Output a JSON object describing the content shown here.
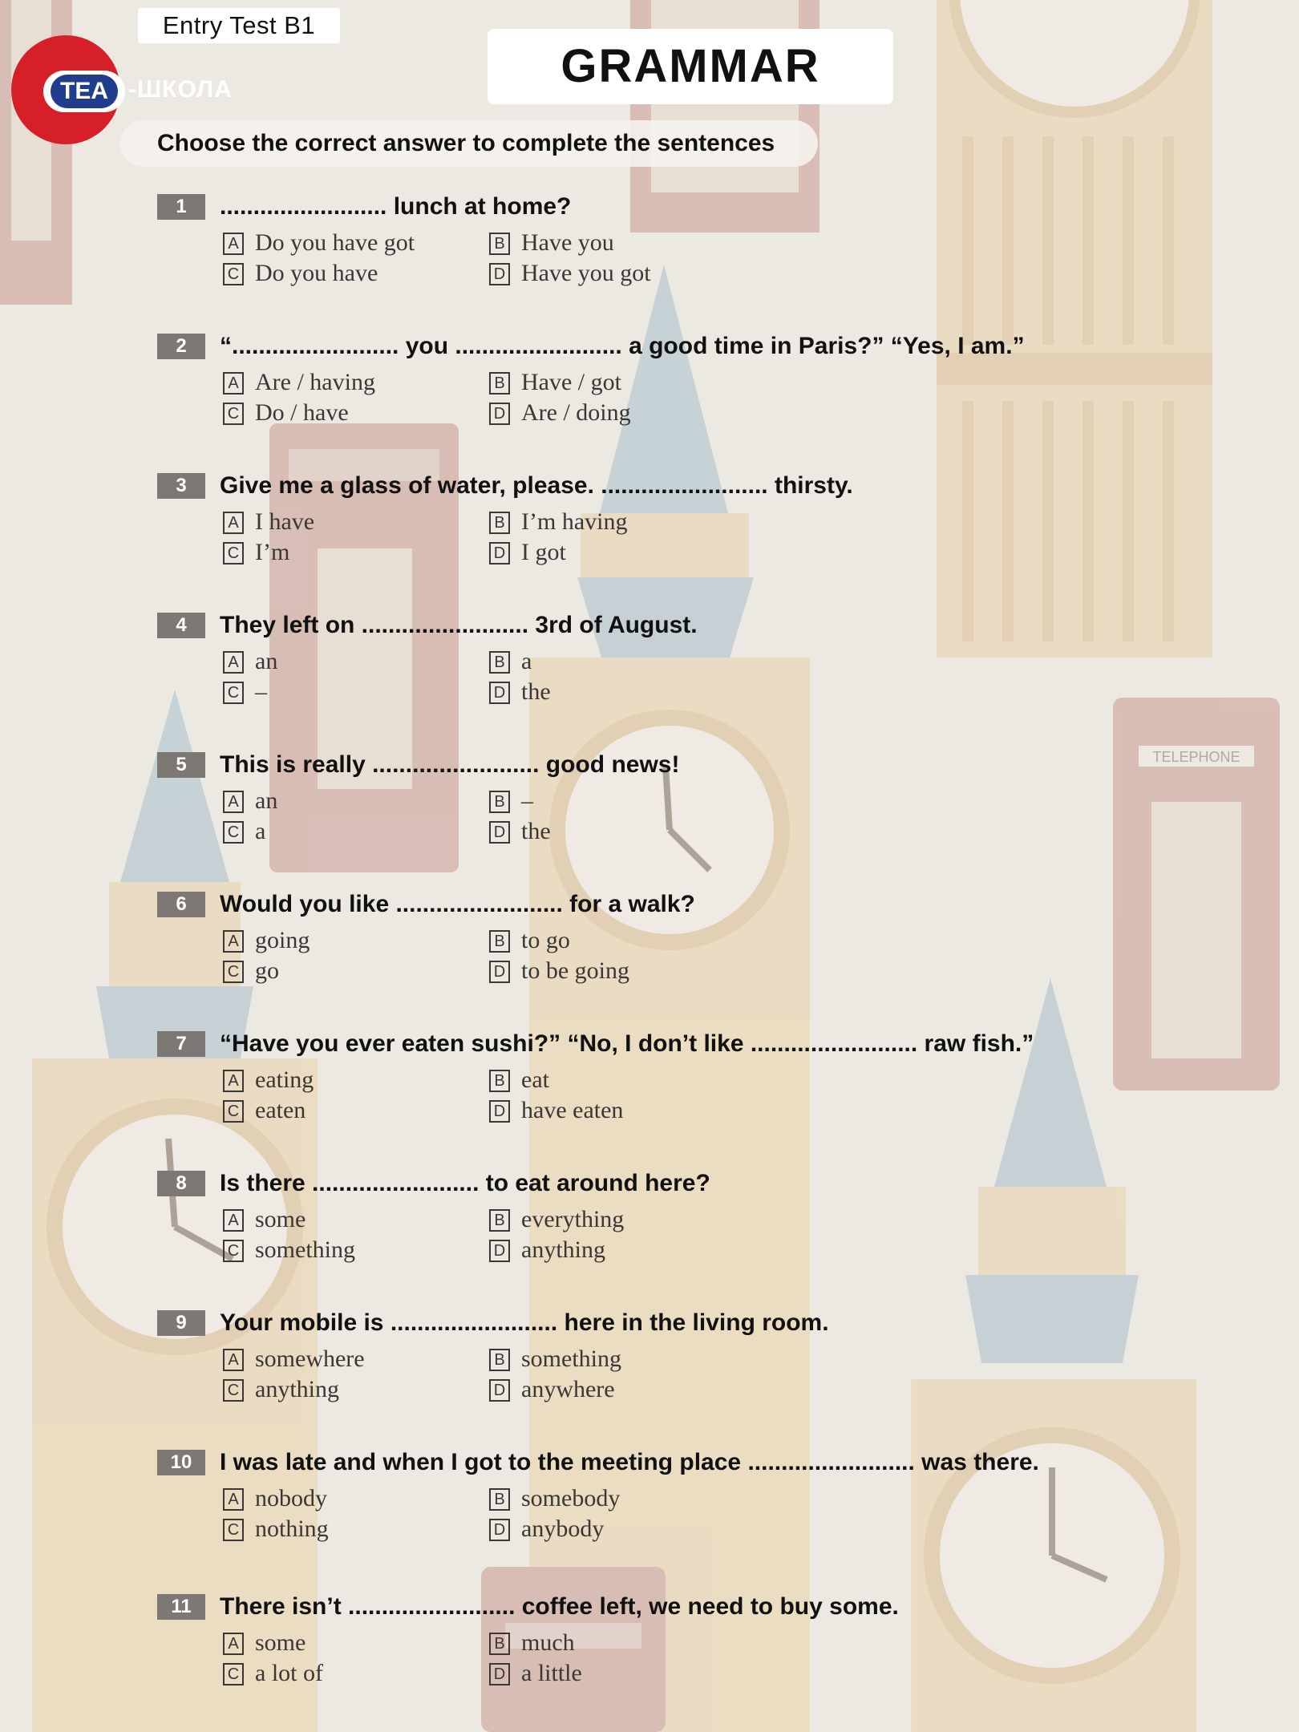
{
  "header": {
    "test_label": "Entry Test B1",
    "logo_tea": "TEA",
    "logo_school": "-ШКОЛА",
    "title": "GRAMMAR"
  },
  "instructions": "Choose the correct answer to complete the sentences",
  "questions": [
    {
      "num": "1",
      "text": "......................... lunch at home?",
      "options": {
        "A": "Do you have got",
        "B": "Have you",
        "C": "Do you have",
        "D": "Have you got"
      }
    },
    {
      "num": "2",
      "text": "“......................... you ......................... a good time in Paris?” “Yes, I am.”",
      "options": {
        "A": "Are / having",
        "B": "Have /  got",
        "C": "Do / have",
        "D": "Are / doing"
      }
    },
    {
      "num": "3",
      "text": "Give me a glass of water, please. ......................... thirsty.",
      "options": {
        "A": "I have",
        "B": "I’m having",
        "C": "I’m",
        "D": "I got"
      }
    },
    {
      "num": "4",
      "text": "They left on ......................... 3rd of August.",
      "options": {
        "A": "an",
        "B": "a",
        "C": "–",
        "D": "the"
      }
    },
    {
      "num": "5",
      "text": "This is really ......................... good news!",
      "options": {
        "A": "an",
        "B": "–",
        "C": "a",
        "D": "the"
      }
    },
    {
      "num": "6",
      "text": "Would you like ......................... for a walk?",
      "options": {
        "A": "going",
        "B": "to go",
        "C": "go",
        "D": "to be going"
      }
    },
    {
      "num": "7",
      "text": "“Have you ever eaten sushi?” “No, I don’t like ......................... raw fish.”",
      "options": {
        "A": "eating",
        "B": "eat",
        "C": "eaten",
        "D": "have eaten"
      }
    },
    {
      "num": "8",
      "text": "Is there ......................... to eat around here?",
      "options": {
        "A": "some",
        "B": "everything",
        "C": "something",
        "D": "anything"
      }
    },
    {
      "num": "9",
      "text": "Your mobile is ......................... here in the living room.",
      "options": {
        "A": "somewhere",
        "B": "something",
        "C": "anything",
        "D": "anywhere"
      }
    },
    {
      "num": "10",
      "text": "I was late and when I got to the meeting place ......................... was there.",
      "options": {
        "A": "nobody",
        "B": "somebody",
        "C": "nothing",
        "D": "anybody"
      }
    },
    {
      "num": "11",
      "text": "There isn’t ......................... coffee left, we need to buy some.",
      "options": {
        "A": "some",
        "B": "much",
        "C": "a lot of",
        "D": "a little"
      }
    }
  ],
  "option_letters": {
    "A": "A",
    "B": "B",
    "C": "C",
    "D": "D"
  },
  "background": {
    "sign_text": "TELEPHONE"
  },
  "colors": {
    "accent": "#d5202a",
    "logo_blue": "#1f3d8c",
    "number_badge": "#7d7874",
    "background": "#ece8e2"
  }
}
